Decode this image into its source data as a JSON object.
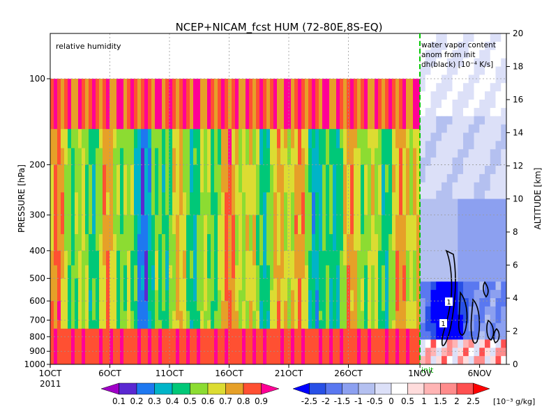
{
  "chart_data": [
    {
      "type": "heatmap",
      "title": "NCEP+NICAM_fcst HUM (72-80E,8S-EQ)",
      "annotation": "relative humidity",
      "ylabel": "PRESSURE [hPa]",
      "y2label": "ALTITUDE [km]",
      "x_ticks": [
        "1OCT",
        "6OCT",
        "11OCT",
        "16OCT",
        "21OCT",
        "26OCT",
        "1NOV",
        "6NOV"
      ],
      "x_year": "2011",
      "y_ticks": [
        "100",
        "200",
        "300",
        "400",
        "500",
        "600",
        "700",
        "800",
        "900",
        "1000"
      ],
      "y2_ticks": [
        "0",
        "2",
        "4",
        "6",
        "8",
        "10",
        "12",
        "14",
        "16",
        "18",
        "20"
      ],
      "init_label": "init",
      "colorbar": {
        "levels": [
          "0.1",
          "0.2",
          "0.3",
          "0.4",
          "0.5",
          "0.6",
          "0.7",
          "0.8",
          "0.9"
        ],
        "colors": [
          "#a000c8",
          "#5a28d2",
          "#1e78f0",
          "#00b4c8",
          "#00c878",
          "#8cdc32",
          "#dcdc32",
          "#e6a028",
          "#ff5032",
          "#ff0096"
        ]
      },
      "series": [
        {
          "name": "relative humidity (upper, 100 hPa)",
          "x": [
            "1OCT",
            "6OCT",
            "11OCT",
            "16OCT",
            "21OCT",
            "26OCT",
            "1NOV"
          ],
          "values": [
            0.9,
            0.9,
            0.8,
            0.9,
            0.9,
            0.9,
            0.8
          ]
        },
        {
          "name": "relative humidity (mid, 400 hPa)",
          "x": [
            "1OCT",
            "6OCT",
            "11OCT",
            "16OCT",
            "21OCT",
            "26OCT",
            "1NOV"
          ],
          "values": [
            0.7,
            0.4,
            0.3,
            0.5,
            0.7,
            0.4,
            0.7
          ]
        },
        {
          "name": "relative humidity (lower, 900 hPa)",
          "x": [
            "1OCT",
            "6OCT",
            "11OCT",
            "16OCT",
            "21OCT",
            "26OCT",
            "1NOV"
          ],
          "values": [
            0.9,
            0.9,
            0.8,
            0.9,
            0.9,
            0.9,
            0.9
          ]
        }
      ],
      "ylim": [
        1000,
        100
      ],
      "y2lim": [
        0,
        20
      ]
    },
    {
      "type": "heatmap",
      "annotation_lines": [
        "water vapor content",
        "anom from init",
        "dh(black) [10⁻⁴ K/s]"
      ],
      "contour_labels": [
        "1",
        "1"
      ],
      "colorbar": {
        "levels": [
          "-2.5",
          "-2",
          "-1.5",
          "-1",
          "-0.5",
          "0",
          "0.5",
          "1",
          "1.5",
          "2",
          "2.5"
        ],
        "units": "[10⁻³ g/kg]",
        "colors": [
          "#0000ff",
          "#2850e6",
          "#5a78f0",
          "#8ca0f0",
          "#b4c0f0",
          "#dce0f8",
          "#ffffff",
          "#ffdcdc",
          "#ffb4b4",
          "#ff8c8c",
          "#ff5050",
          "#ff0000"
        ]
      },
      "series": [
        {
          "name": "water vapor anomaly (near 650 hPa)",
          "x": [
            "1NOV",
            "6NOV"
          ],
          "values": [
            -2.5,
            -0.5
          ]
        },
        {
          "name": "water vapor anomaly (near 900 hPa)",
          "x": [
            "1NOV",
            "6NOV"
          ],
          "values": [
            1.0,
            2.0
          ]
        }
      ]
    }
  ]
}
